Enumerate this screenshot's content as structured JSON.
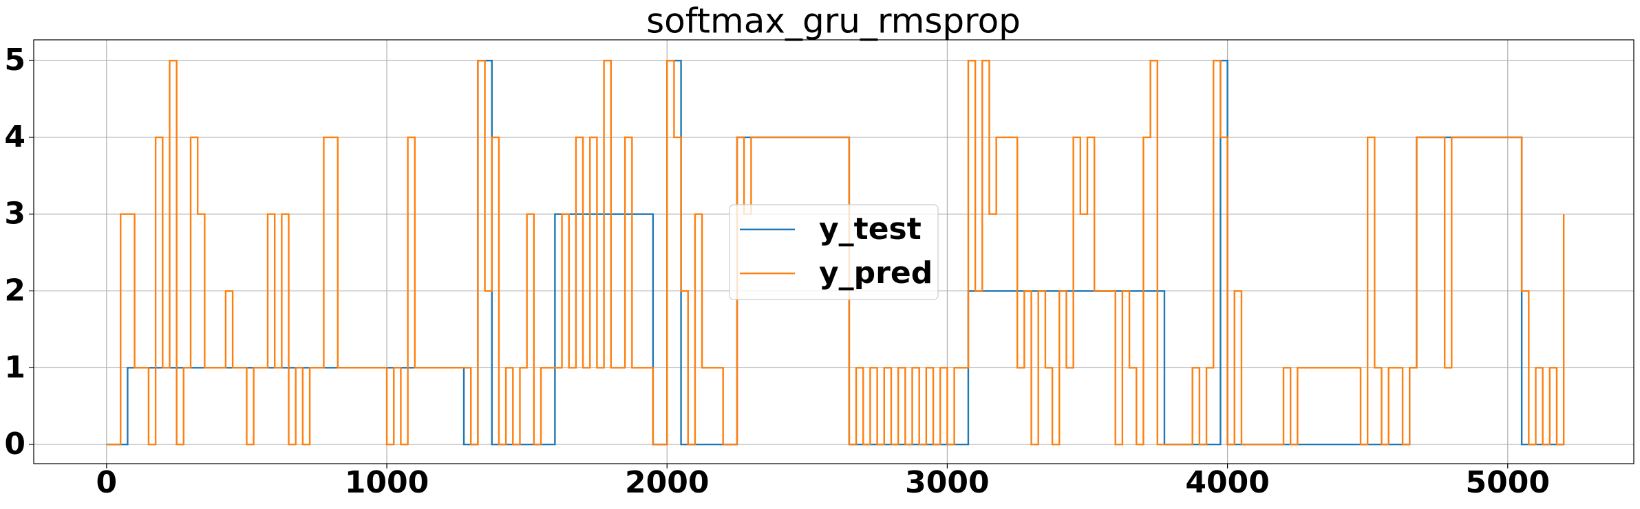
{
  "chart_data": {
    "type": "line",
    "step": "post",
    "title": "softmax_gru_rmsprop",
    "x": [
      0,
      25,
      50,
      75,
      100,
      125,
      150,
      175,
      200,
      225,
      250,
      275,
      300,
      325,
      350,
      375,
      400,
      425,
      450,
      475,
      500,
      525,
      550,
      575,
      600,
      625,
      650,
      675,
      700,
      725,
      750,
      775,
      800,
      825,
      850,
      875,
      900,
      925,
      950,
      975,
      1000,
      1025,
      1050,
      1075,
      1100,
      1125,
      1150,
      1175,
      1200,
      1225,
      1250,
      1275,
      1300,
      1325,
      1350,
      1375,
      1400,
      1425,
      1450,
      1475,
      1500,
      1525,
      1550,
      1575,
      1600,
      1625,
      1650,
      1675,
      1700,
      1725,
      1750,
      1775,
      1800,
      1825,
      1850,
      1875,
      1900,
      1925,
      1950,
      1975,
      2000,
      2025,
      2050,
      2075,
      2100,
      2125,
      2150,
      2175,
      2200,
      2225,
      2250,
      2275,
      2300,
      2325,
      2350,
      2375,
      2400,
      2425,
      2450,
      2475,
      2500,
      2525,
      2550,
      2575,
      2600,
      2625,
      2650,
      2675,
      2700,
      2725,
      2750,
      2775,
      2800,
      2825,
      2850,
      2875,
      2900,
      2925,
      2950,
      2975,
      3000,
      3025,
      3050,
      3075,
      3100,
      3125,
      3150,
      3175,
      3200,
      3225,
      3250,
      3275,
      3300,
      3325,
      3350,
      3375,
      3400,
      3425,
      3450,
      3475,
      3500,
      3525,
      3550,
      3575,
      3600,
      3625,
      3650,
      3675,
      3700,
      3725,
      3750,
      3775,
      3800,
      3825,
      3850,
      3875,
      3900,
      3925,
      3950,
      3975,
      4000,
      4025,
      4050,
      4075,
      4100,
      4125,
      4150,
      4175,
      4200,
      4225,
      4250,
      4275,
      4300,
      4325,
      4350,
      4375,
      4400,
      4425,
      4450,
      4475,
      4500,
      4525,
      4550,
      4575,
      4600,
      4625,
      4650,
      4675,
      4700,
      4725,
      4750,
      4775,
      4800,
      4825,
      4850,
      4875,
      4900,
      4925,
      4950,
      4975,
      5000,
      5025,
      5050,
      5075,
      5100,
      5125,
      5150,
      5175,
      5200
    ],
    "series": [
      {
        "name": "y_test",
        "color": "#1f77b4",
        "values": [
          0,
          0,
          0,
          1,
          1,
          1,
          1,
          1,
          1,
          1,
          1,
          1,
          1,
          1,
          1,
          1,
          1,
          1,
          1,
          1,
          1,
          1,
          1,
          1,
          1,
          1,
          1,
          1,
          1,
          1,
          1,
          1,
          1,
          1,
          1,
          1,
          1,
          1,
          1,
          1,
          1,
          1,
          1,
          1,
          1,
          1,
          1,
          1,
          1,
          1,
          1,
          0,
          0,
          5,
          5,
          0,
          0,
          0,
          0,
          0,
          0,
          0,
          0,
          0,
          3,
          3,
          3,
          3,
          3,
          3,
          3,
          3,
          3,
          3,
          3,
          3,
          3,
          3,
          0,
          0,
          5,
          5,
          0,
          0,
          0,
          0,
          0,
          0,
          0,
          0,
          4,
          4,
          4,
          4,
          4,
          4,
          4,
          4,
          4,
          4,
          4,
          4,
          4,
          4,
          4,
          4,
          0,
          0,
          0,
          0,
          0,
          0,
          0,
          0,
          0,
          0,
          0,
          0,
          0,
          0,
          0,
          0,
          0,
          2,
          2,
          2,
          2,
          2,
          2,
          2,
          2,
          2,
          2,
          2,
          2,
          2,
          2,
          2,
          2,
          2,
          2,
          2,
          2,
          2,
          2,
          2,
          2,
          2,
          2,
          2,
          2,
          0,
          0,
          0,
          0,
          0,
          0,
          0,
          0,
          5,
          0,
          0,
          0,
          0,
          0,
          0,
          0,
          0,
          0,
          0,
          0,
          0,
          0,
          0,
          0,
          0,
          0,
          0,
          0,
          0,
          0,
          0,
          0,
          0,
          0,
          0,
          1,
          4,
          4,
          4,
          4,
          4,
          4,
          4,
          4,
          4,
          4,
          4,
          4,
          4,
          4,
          4,
          0,
          0,
          0,
          0,
          0,
          0,
          0
        ]
      },
      {
        "name": "y_pred",
        "color": "#ff7f0e",
        "values": [
          0,
          0,
          3,
          3,
          1,
          1,
          0,
          4,
          1,
          5,
          0,
          1,
          4,
          3,
          1,
          1,
          1,
          2,
          1,
          1,
          0,
          1,
          1,
          3,
          1,
          3,
          0,
          1,
          0,
          1,
          1,
          4,
          4,
          1,
          1,
          1,
          1,
          1,
          1,
          1,
          0,
          1,
          0,
          4,
          1,
          1,
          1,
          1,
          1,
          1,
          1,
          1,
          0,
          5,
          2,
          4,
          0,
          1,
          0,
          1,
          3,
          0,
          1,
          1,
          1,
          3,
          1,
          4,
          1,
          4,
          1,
          5,
          1,
          1,
          4,
          1,
          1,
          1,
          0,
          0,
          5,
          4,
          2,
          0,
          3,
          1,
          1,
          1,
          0,
          0,
          4,
          3,
          4,
          4,
          4,
          4,
          4,
          4,
          4,
          4,
          4,
          4,
          4,
          4,
          4,
          4,
          0,
          1,
          0,
          1,
          0,
          1,
          0,
          1,
          0,
          1,
          0,
          1,
          0,
          1,
          0,
          1,
          1,
          5,
          2,
          5,
          3,
          4,
          4,
          4,
          1,
          2,
          0,
          2,
          1,
          0,
          2,
          1,
          4,
          3,
          4,
          2,
          2,
          2,
          0,
          2,
          1,
          0,
          4,
          5,
          0,
          0,
          0,
          0,
          0,
          1,
          0,
          1,
          5,
          4,
          0,
          2,
          0,
          0,
          0,
          0,
          0,
          0,
          1,
          0,
          1,
          1,
          1,
          1,
          1,
          1,
          1,
          1,
          1,
          0,
          4,
          1,
          0,
          1,
          1,
          0,
          1,
          4,
          4,
          4,
          4,
          1,
          4,
          4,
          4,
          4,
          4,
          4,
          4,
          4,
          4,
          4,
          2,
          0,
          1,
          0,
          1,
          0,
          3
        ]
      }
    ],
    "xlim": [
      -260,
      5450
    ],
    "ylim": [
      -0.25,
      5.27
    ],
    "xticks": [
      0,
      1000,
      2000,
      3000,
      4000,
      5000
    ],
    "yticks": [
      0,
      1,
      2,
      3,
      4,
      5
    ],
    "grid": true,
    "legend": "center"
  }
}
